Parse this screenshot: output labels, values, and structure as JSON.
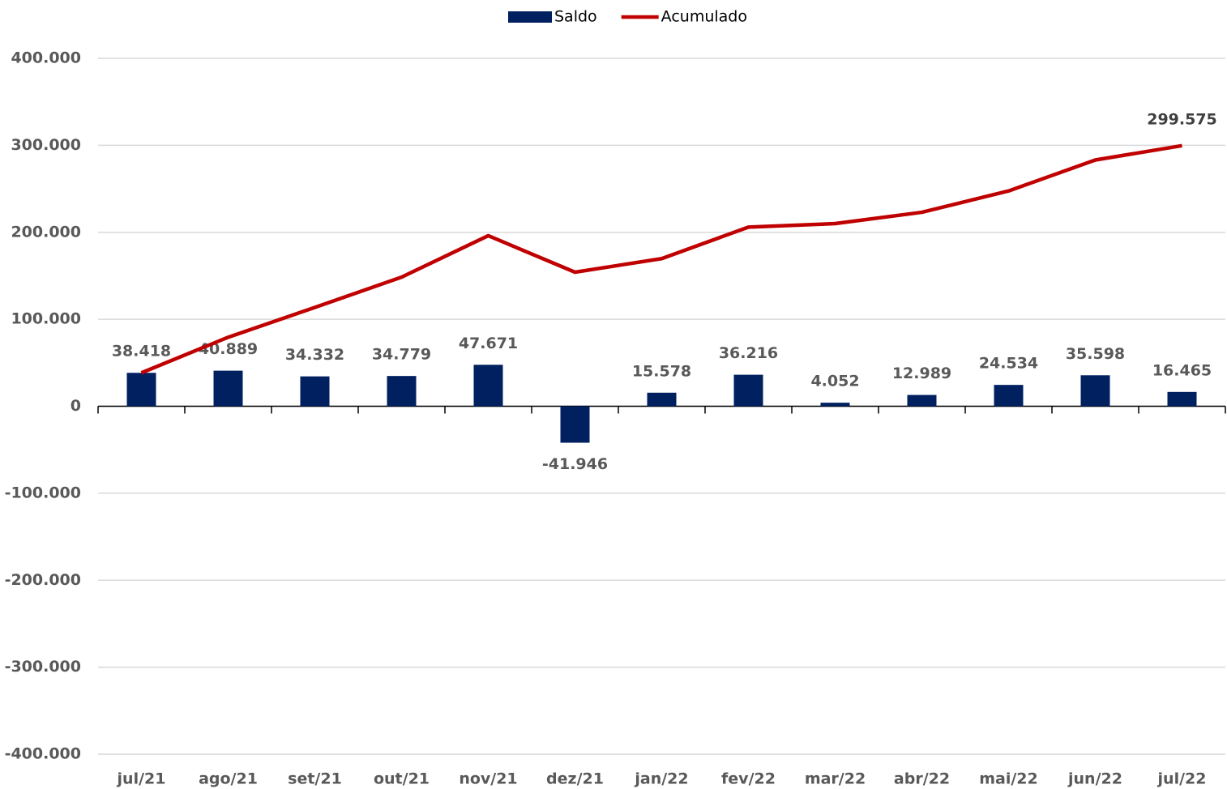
{
  "chart_data": {
    "type": "combo",
    "categories": [
      "jul/21",
      "ago/21",
      "set/21",
      "out/21",
      "nov/21",
      "dez/21",
      "jan/22",
      "fev/22",
      "mar/22",
      "abr/22",
      "mai/22",
      "jun/22",
      "jul/22"
    ],
    "series": [
      {
        "name": "Saldo",
        "type": "bar",
        "color": "#002060",
        "values": [
          38418,
          40889,
          34332,
          34779,
          47671,
          -41946,
          15578,
          36216,
          4052,
          12989,
          24534,
          35598,
          16465
        ],
        "value_labels": [
          "38.418",
          "40.889",
          "34.332",
          "34.779",
          "47.671",
          "-41.946",
          "15.578",
          "36.216",
          "4.052",
          "12.989",
          "24.534",
          "35.598",
          "16.465"
        ]
      },
      {
        "name": "Acumulado",
        "type": "line",
        "color": "#c00000",
        "values": [
          38418,
          79307,
          113639,
          148418,
          196089,
          154143,
          169721,
          205937,
          209989,
          222978,
          247512,
          283110,
          299575
        ],
        "value_labels": [
          null,
          null,
          null,
          null,
          null,
          null,
          null,
          null,
          null,
          null,
          null,
          null,
          "299.575"
        ]
      }
    ],
    "ylim": [
      -400000,
      400000
    ],
    "yticks": [
      {
        "value": -400000,
        "label": "-400.000"
      },
      {
        "value": -300000,
        "label": "-300.000"
      },
      {
        "value": -200000,
        "label": "-200.000"
      },
      {
        "value": -100000,
        "label": "-100.000"
      },
      0,
      {
        "value": 100000,
        "label": "100.000"
      },
      {
        "value": 200000,
        "label": "200.000"
      },
      {
        "value": 300000,
        "label": "300.000"
      },
      {
        "value": 400000,
        "label": "400.000"
      }
    ],
    "grid": true,
    "legend": "top"
  }
}
